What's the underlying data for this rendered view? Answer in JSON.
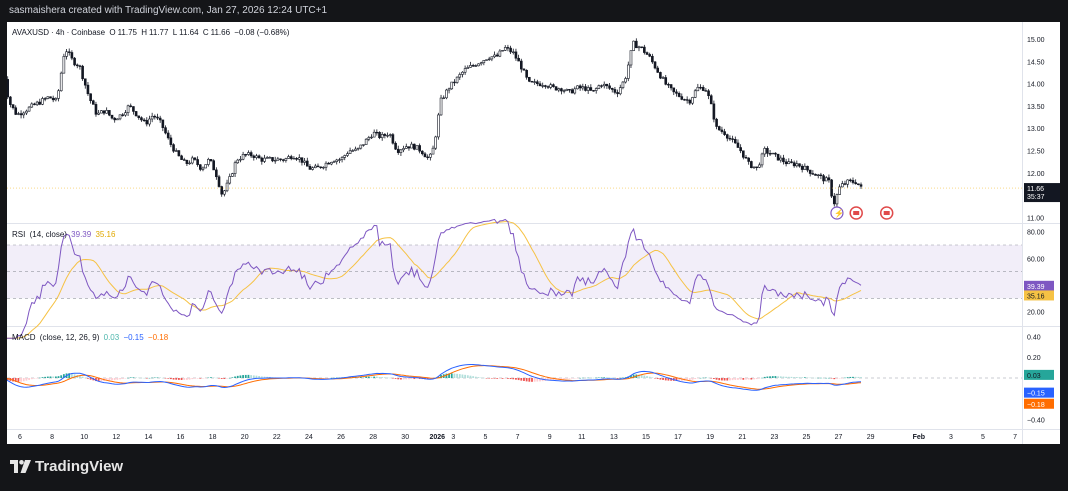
{
  "header": {
    "text": "sasmaishera created with TradingView.com, Jan 27, 2026 12:24 UTC+1"
  },
  "footer": {
    "brand": "TradingView"
  },
  "colors": {
    "up": "#131722",
    "rsi": "#7e57c2",
    "rsi_ma": "#f6c244",
    "macd": "#2962ff",
    "signal": "#ff6d00",
    "hist_up_strong": "#26a69a",
    "hist_up_weak": "#b2dfdb",
    "hist_down_strong": "#ef5350",
    "hist_down_weak": "#ffcdd2",
    "price_badge": "#131722",
    "event_icon": "#e04a4a",
    "flash_icon": "#7e57c2"
  },
  "chart_data": [
    {
      "type": "candlestick",
      "symbol": "AVAXUSD",
      "interval": "4h",
      "exchange": "Coinbase",
      "ohlc_labels": {
        "o": "O",
        "o_val": "11.75",
        "h": "H",
        "h_val": "11.77",
        "l": "L",
        "l_val": "11.64",
        "c": "C",
        "c_val": "11.66",
        "change": "−0.08 (−0.68%)"
      },
      "legend_sep": "·",
      "ylim": [
        10.9,
        15.2
      ],
      "yticks": [
        "15.00",
        "14.50",
        "14.00",
        "13.50",
        "13.00",
        "12.50",
        "12.00",
        "11.00"
      ],
      "last_price": "11.66",
      "countdown": "35:37",
      "x_labels": [
        "6",
        "8",
        "10",
        "12",
        "14",
        "16",
        "18",
        "20",
        "22",
        "24",
        "26",
        "28",
        "30",
        "2026",
        "3",
        "5",
        "7",
        "9",
        "11",
        "13",
        "15",
        "17",
        "19",
        "21",
        "23",
        "25",
        "27",
        "29",
        "Feb",
        "3",
        "5",
        "7"
      ],
      "close_path": [
        [
          4.9,
          14.5
        ],
        [
          5.3,
          13.6
        ],
        [
          5.8,
          13.3
        ],
        [
          6.3,
          13.4
        ],
        [
          6.8,
          13.5
        ],
        [
          7.3,
          13.6
        ],
        [
          7.8,
          13.7
        ],
        [
          8.3,
          13.6
        ],
        [
          8.8,
          14.8
        ],
        [
          9.3,
          14.5
        ],
        [
          9.7,
          14.4
        ],
        [
          10.3,
          13.7
        ],
        [
          10.8,
          13.3
        ],
        [
          11.3,
          13.4
        ],
        [
          11.8,
          13.2
        ],
        [
          12.3,
          13.3
        ],
        [
          12.8,
          13.5
        ],
        [
          13.3,
          13.3
        ],
        [
          13.8,
          13.1
        ],
        [
          14.3,
          13.3
        ],
        [
          14.8,
          13.1
        ],
        [
          15.3,
          12.7
        ],
        [
          15.8,
          12.4
        ],
        [
          16.3,
          12.2
        ],
        [
          16.8,
          12.3
        ],
        [
          17.3,
          12.1
        ],
        [
          17.8,
          12.3
        ],
        [
          18.2,
          12.0
        ],
        [
          18.6,
          11.5
        ],
        [
          19.0,
          11.8
        ],
        [
          19.5,
          12.3
        ],
        [
          20.0,
          12.4
        ],
        [
          20.5,
          12.4
        ],
        [
          21.0,
          12.3
        ],
        [
          21.5,
          12.3
        ],
        [
          22.0,
          12.3
        ],
        [
          22.5,
          12.3
        ],
        [
          23.0,
          12.4
        ],
        [
          23.5,
          12.3
        ],
        [
          24.0,
          12.1
        ],
        [
          24.5,
          12.1
        ],
        [
          25.0,
          12.2
        ],
        [
          25.5,
          12.3
        ],
        [
          26.0,
          12.3
        ],
        [
          26.5,
          12.5
        ],
        [
          27.0,
          12.5
        ],
        [
          27.5,
          12.7
        ],
        [
          28.0,
          12.9
        ],
        [
          28.5,
          12.8
        ],
        [
          29.0,
          12.9
        ],
        [
          29.5,
          12.5
        ],
        [
          30.0,
          12.6
        ],
        [
          30.5,
          12.6
        ],
        [
          31.0,
          12.5
        ],
        [
          31.5,
          12.3
        ],
        [
          31.8,
          12.6
        ],
        [
          32.2,
          13.6
        ],
        [
          32.7,
          13.9
        ],
        [
          33.2,
          14.1
        ],
        [
          33.7,
          14.3
        ],
        [
          34.2,
          14.4
        ],
        [
          34.7,
          14.5
        ],
        [
          35.2,
          14.6
        ],
        [
          35.7,
          14.6
        ],
        [
          36.2,
          14.8
        ],
        [
          36.7,
          14.7
        ],
        [
          37.2,
          14.4
        ],
        [
          37.7,
          14.0
        ],
        [
          38.2,
          14.0
        ],
        [
          38.7,
          14.0
        ],
        [
          39.2,
          13.9
        ],
        [
          39.7,
          13.9
        ],
        [
          40.2,
          13.8
        ],
        [
          40.7,
          13.9
        ],
        [
          41.2,
          13.9
        ],
        [
          41.7,
          13.8
        ],
        [
          42.2,
          14.0
        ],
        [
          42.7,
          13.9
        ],
        [
          43.2,
          13.8
        ],
        [
          43.7,
          14.1
        ],
        [
          44.2,
          14.9
        ],
        [
          44.7,
          14.8
        ],
        [
          45.2,
          14.6
        ],
        [
          45.7,
          14.3
        ],
        [
          46.2,
          14.0
        ],
        [
          46.7,
          13.8
        ],
        [
          47.2,
          13.7
        ],
        [
          47.7,
          13.6
        ],
        [
          48.2,
          13.9
        ],
        [
          48.7,
          13.9
        ],
        [
          49.0,
          13.6
        ],
        [
          49.4,
          13.0
        ],
        [
          49.9,
          12.9
        ],
        [
          50.4,
          12.7
        ],
        [
          50.9,
          12.5
        ],
        [
          51.4,
          12.2
        ],
        [
          51.9,
          12.1
        ],
        [
          52.4,
          12.5
        ],
        [
          52.9,
          12.4
        ],
        [
          53.4,
          12.3
        ],
        [
          53.9,
          12.2
        ],
        [
          54.4,
          12.2
        ],
        [
          54.9,
          12.1
        ],
        [
          55.4,
          12.0
        ],
        [
          55.9,
          11.9
        ],
        [
          56.4,
          11.8
        ],
        [
          56.7,
          11.3
        ],
        [
          57.1,
          11.7
        ],
        [
          57.6,
          11.8
        ],
        [
          58.1,
          11.8
        ],
        [
          58.4,
          11.66
        ]
      ],
      "rsi": {
        "label": "RSI",
        "params": "(14, close)",
        "value": "39.39",
        "ma_value": "35.16",
        "ylim": [
          10,
          85
        ],
        "yticks": [
          "80.00",
          "60.00",
          "20.00"
        ],
        "band": [
          30,
          70
        ],
        "mid": 50
      },
      "macd": {
        "label": "MACD",
        "params": "(close, 12, 26, 9)",
        "hist_value": "0.03",
        "macd_value": "−0.15",
        "signal_value": "−0.18",
        "ylim": [
          -0.48,
          0.48
        ],
        "yticks": [
          "0.40",
          "0.20",
          "−0.40"
        ]
      }
    }
  ],
  "event_icons": [
    {
      "name": "flash-icon"
    },
    {
      "name": "flag-event-icon"
    },
    {
      "name": "flag-event-icon"
    }
  ]
}
